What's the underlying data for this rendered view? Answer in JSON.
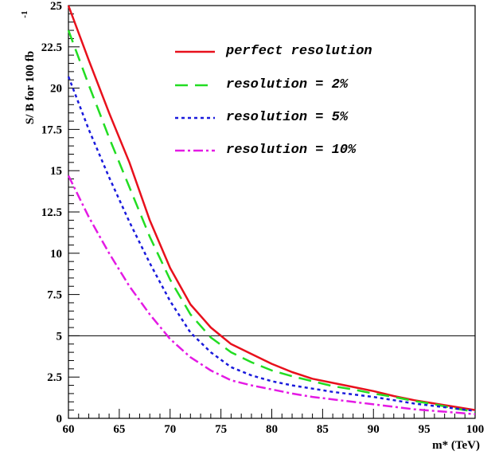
{
  "chart_data": {
    "type": "line",
    "title": "",
    "xlabel": "m* (TeV)",
    "ylabel": "S/ B for 100 fb",
    "ylabel_superscript": "-1",
    "xlim": [
      60,
      100
    ],
    "ylim": [
      0,
      25
    ],
    "x_ticks": [
      60,
      65,
      70,
      75,
      80,
      85,
      90,
      95,
      100
    ],
    "x_tick_labels": [
      "60",
      "65",
      "70",
      "75",
      "80",
      "85",
      "90",
      "95",
      "100"
    ],
    "y_ticks": [
      0,
      2.5,
      5,
      7.5,
      10,
      12.5,
      15,
      17.5,
      20,
      22.5,
      25
    ],
    "y_tick_labels": [
      "0",
      "2.5",
      "5",
      "7.5",
      "10",
      "12.5",
      "15",
      "17.5",
      "20",
      "22.5",
      "25"
    ],
    "grid": false,
    "legend_position": "top-right",
    "reference_line": {
      "y": 5,
      "color": "#000000"
    },
    "series": [
      {
        "name": "perfect resolution",
        "color": "#e8101c",
        "dash": "solid",
        "x": [
          60,
          62,
          64,
          66,
          68,
          70,
          72,
          74,
          75,
          76,
          78,
          80,
          82,
          84,
          86,
          88,
          90,
          92,
          94,
          96,
          98,
          100
        ],
        "y": [
          25,
          21.7,
          18.5,
          15.5,
          12.0,
          9.1,
          6.9,
          5.5,
          5.0,
          4.5,
          3.9,
          3.3,
          2.8,
          2.4,
          2.15,
          1.9,
          1.65,
          1.35,
          1.1,
          0.9,
          0.7,
          0.5
        ]
      },
      {
        "name": "resolution = 2%",
        "color": "#22dd22",
        "dash": "long-dash",
        "x": [
          60,
          62,
          64,
          66,
          68,
          70,
          72,
          74,
          76,
          78,
          80,
          82,
          84,
          86,
          88,
          90,
          92,
          94,
          96,
          98,
          100
        ],
        "y": [
          23.5,
          20.2,
          17.0,
          14.0,
          11.0,
          8.4,
          6.3,
          4.9,
          4.0,
          3.4,
          2.9,
          2.55,
          2.25,
          1.95,
          1.75,
          1.5,
          1.3,
          1.05,
          0.85,
          0.6,
          0.4
        ]
      },
      {
        "name": "resolution = 5%",
        "color": "#1a1adc",
        "dash": "dotted",
        "x": [
          60,
          62,
          64,
          66,
          68,
          70,
          72,
          74,
          76,
          78,
          80,
          82,
          84,
          86,
          88,
          90,
          92,
          94,
          96,
          98,
          100
        ],
        "y": [
          20.7,
          17.5,
          14.6,
          11.9,
          9.4,
          7.1,
          5.2,
          4.0,
          3.1,
          2.6,
          2.25,
          2.0,
          1.8,
          1.6,
          1.45,
          1.3,
          1.1,
          0.9,
          0.75,
          0.6,
          0.45
        ]
      },
      {
        "name": "resolution = 10%",
        "color": "#e41ae4",
        "dash": "dash-dot",
        "x": [
          60,
          62,
          64,
          66,
          68,
          70,
          72,
          74,
          76,
          78,
          80,
          82,
          84,
          86,
          88,
          90,
          92,
          94,
          96,
          98,
          100
        ],
        "y": [
          14.7,
          12.2,
          10.0,
          8.0,
          6.3,
          4.8,
          3.7,
          2.9,
          2.3,
          2.0,
          1.75,
          1.5,
          1.3,
          1.15,
          1.0,
          0.85,
          0.7,
          0.55,
          0.45,
          0.35,
          0.25
        ]
      }
    ]
  }
}
